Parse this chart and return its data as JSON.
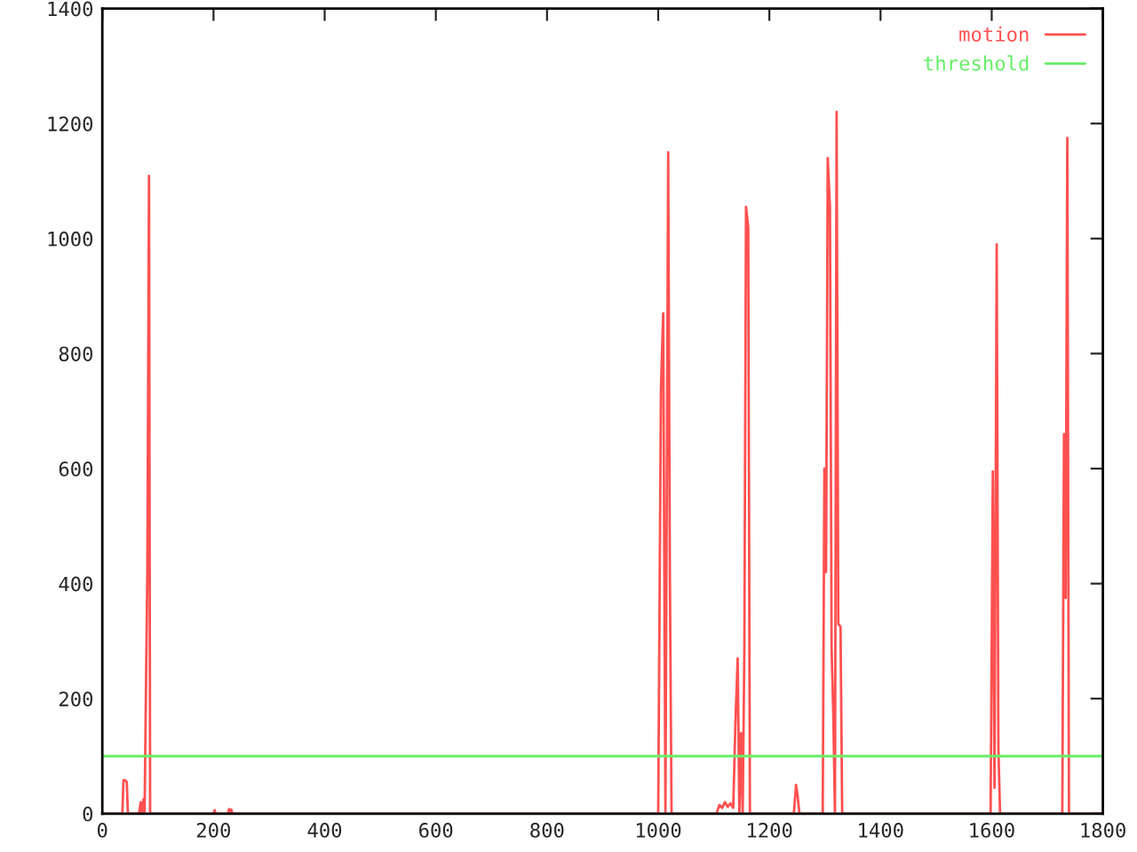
{
  "chart_data": {
    "type": "line",
    "xlim": [
      0,
      1800
    ],
    "ylim": [
      0,
      1400
    ],
    "xticks": [
      0,
      200,
      400,
      600,
      800,
      1000,
      1200,
      1400,
      1600,
      1800
    ],
    "yticks": [
      0,
      200,
      400,
      600,
      800,
      1000,
      1200,
      1400
    ],
    "grid": false,
    "legend": "top right",
    "marker": "none",
    "line_style": "solid",
    "series": [
      {
        "name": "motion",
        "color": "#ff5050",
        "x": [
          0,
          36,
          38,
          41,
          44,
          46,
          66,
          69,
          71,
          74,
          76,
          78,
          81,
          84,
          86,
          200,
          202,
          204,
          226,
          228,
          230,
          232,
          234,
          1000,
          1005,
          1009,
          1013,
          1018,
          1021,
          1024,
          1105,
          1110,
          1115,
          1120,
          1125,
          1130,
          1135,
          1139,
          1143,
          1146,
          1149,
          1152,
          1155,
          1158,
          1162,
          1165,
          1244,
          1248,
          1251,
          1254,
          1296,
          1299,
          1302,
          1305,
          1309,
          1312,
          1315,
          1318,
          1321,
          1324,
          1328,
          1331,
          1598,
          1602,
          1605,
          1609,
          1612,
          1615,
          1727,
          1730,
          1733,
          1736,
          1739,
          1800
        ],
        "values": [
          0,
          0,
          58,
          58,
          55,
          0,
          0,
          20,
          0,
          25,
          0,
          172,
          420,
          1109,
          0,
          0,
          6,
          0,
          0,
          8,
          4,
          7,
          0,
          0,
          740,
          870,
          0,
          1150,
          420,
          0,
          0,
          15,
          10,
          20,
          12,
          18,
          10,
          160,
          270,
          0,
          140,
          0,
          285,
          1055,
          1020,
          0,
          0,
          50,
          30,
          0,
          0,
          600,
          420,
          1140,
          1055,
          285,
          175,
          0,
          1220,
          330,
          325,
          0,
          0,
          595,
          45,
          990,
          115,
          0,
          0,
          660,
          375,
          1175,
          0,
          0
        ]
      },
      {
        "name": "threshold",
        "color": "#66ee66",
        "x": [
          0,
          1800
        ],
        "values": [
          100,
          100
        ]
      }
    ]
  }
}
